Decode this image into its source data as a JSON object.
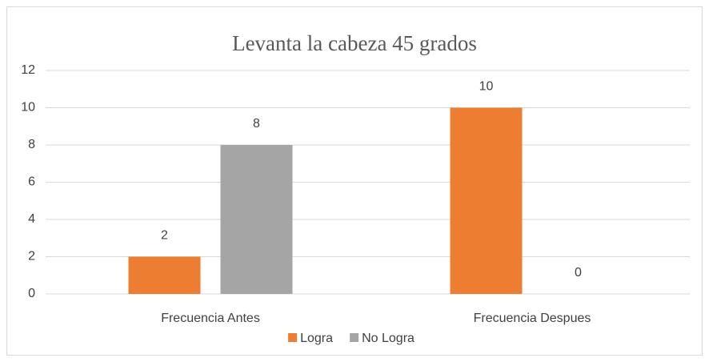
{
  "chart_data": {
    "type": "bar",
    "title": "Levanta la cabeza 45 grados",
    "categories": [
      "Frecuencia Antes",
      "Frecuencia Despues"
    ],
    "series": [
      {
        "name": "Logra",
        "color": "#ed7d31",
        "values": [
          2,
          10
        ]
      },
      {
        "name": "No Logra",
        "color": "#a5a5a5",
        "values": [
          8,
          0
        ]
      }
    ],
    "ylim": [
      0,
      12
    ],
    "yticks": [
      0,
      2,
      4,
      6,
      8,
      10,
      12
    ],
    "grid": true,
    "data_labels": true,
    "legend": "bottom"
  }
}
